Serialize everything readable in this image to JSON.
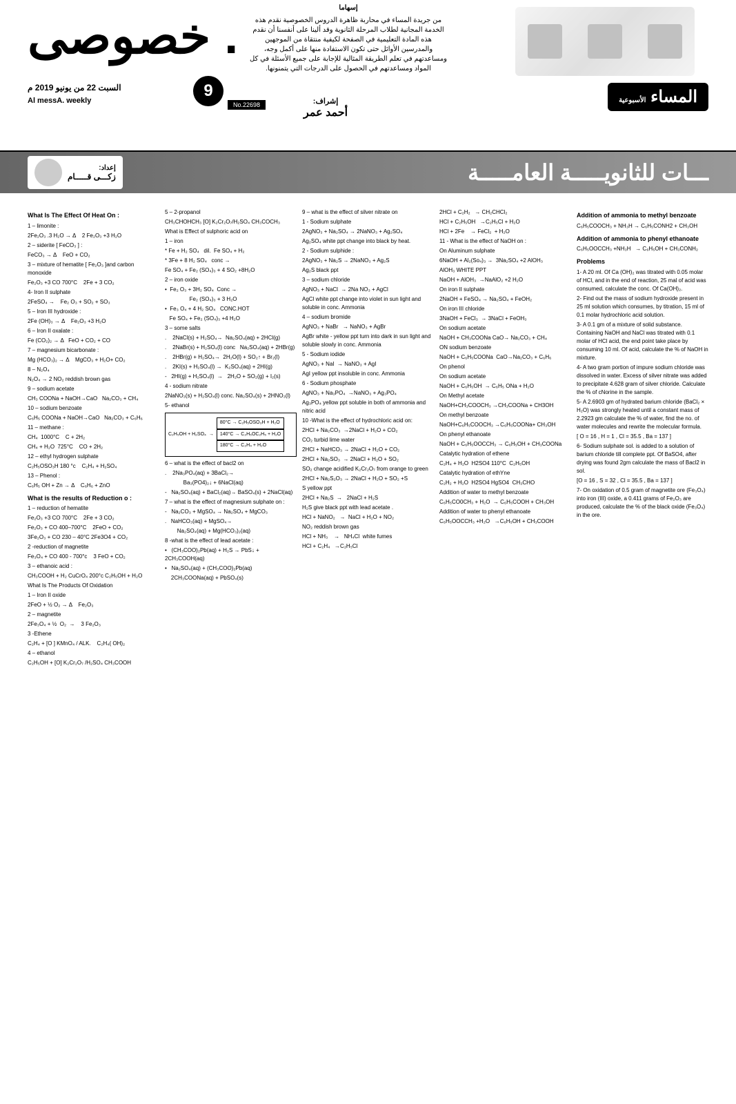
{
  "masthead": {
    "title": ". خصوصى",
    "date": "السبت 22 من يونيو 2019 م",
    "weekly": "Al messA. weekly",
    "page_number": "9",
    "issue": "No.22698",
    "intro_title": "إسهاما",
    "intro_body": "من جريدة المساء في محاربة ظاهرة الدروس الخصوصية نقدم هذه الخدمة المجانية لطلاب المرحلة الثانوية وقد ألينا على أنفسنا أن نقدم هذه المادة التعليمية في الصفحة لكيفية منتقاة من الموجهين والمدرسين الأوائل حتى تكون الاستفادة منها على أكمل وجه، ومساعدتهم في تعلم الطريقة المثالية للإجابة على جميع الأسئلة في كل المواد ومساعدتهم في الحصول على الدرجات التي يتمنونها.",
    "supervisor_label": "إشراف:",
    "supervisor_name": "أحمد عمر",
    "logo_main": "المساء",
    "logo_sub": "الأسبوعية"
  },
  "banner": {
    "title": "ـــات للثانويـــــة العامـــــة",
    "prep_label": "إعداد:",
    "author_name": "زكـــى قـــــام"
  },
  "col1": {
    "h1": "What Is The Effect Of Heat On :",
    "items": [
      "1 – limonite :",
      "2Fe₂O₃ .3 H₂O → Δ    2 Fe₂O₃ +3 H₂O",
      "2 – siderite [ FeCO₃ ] :",
      "FeCO₃ → Δ    FeO + CO₂",
      "3 – mixture of hematite [ Fe₂O₃ ]and carbon monoxide",
      "Fe₂O₃ +3 CO 700°C    2Fe + 3 CO₂",
      "4- Iron II sulphate",
      "2FeSO₄ →    Fe₂ O₃ + SO₂ + SO₃",
      "5 – Iron III hydroxide :",
      "2Fe (OH)₃ → Δ    Fe₂O₃ +3 H₂O",
      "6 – Iron II oxalate :",
      "Fe (CO₂)₂ → Δ   FeO + CO₂ + CO",
      "7 – magnesium bicarbonate :",
      "Mg (HCO₃)₂ → Δ    MgCO₃ + H₂O+ CO₂",
      "8 – N₂O₄",
      "N₂O₄ → 2 NO₂ reddish brown gas",
      "9 – sodium acetate",
      "CH₃ COONa + NaOH→CaO   Na₂CO₃ + CH₄",
      "10 – sodium benzoate",
      "C₆H₅ COONa + NaOH→CaO   Na₂CO₃ + C₆H₆",
      "11 – methane :",
      "CH₄  1000°C    C + 2H₂",
      "CH₄ + H₂O  725°C    CO + 2H₂",
      "",
      "12 – ethyl hydrogen sulphate",
      "C₂H₅OSO₃H 180 °c    C₂H₄ + H₂SO₄",
      "13 – Phenol :",
      "C₆H₅ OH + Zn → Δ    C₆H₆ + ZnO"
    ],
    "h2": "What is the results of Reduction o :",
    "items2": [
      "1 – reduction of hematite",
      "Fe₂O₃ +3 CO 700°C    2Fe + 3 CO₂",
      "Fe₂O₃ + CO 400–700°C    2FeO + CO₂",
      "3Fe₂O₃ + CO 230 – 40°C 2Fe3O4 + CO₂",
      "2 -reduction of magnetite",
      "Fe₃O₄ + CO 400 - 700°c    3 FeO + CO₂",
      "3 – ethanoic acid :",
      "CH₃COOH + H₂ CuCrO₄ 200°c C₂H₅OH + H₂O",
      "What Is The Products Of Oxidation",
      "1 – Iron II oxide",
      "2FeO + ½ O₂ → Δ    Fe₂O₃",
      "2 – magnetite",
      "2Fe₃O₄ + ½  O₂  →    3 Fe₂O₃",
      "3 -Ethene",
      "C₂H₄ + [O ] KMnO₄ / ALK.    C₂H₄( OH)₂",
      "4 – ethanol",
      "C₂H₅OH + [O] K₂Cr₂O₇ /H₂SO₄ CH₃COOH"
    ]
  },
  "col2": {
    "items": [
      "5 – 2-propanol",
      "CH₃CHOHCH₃ [O] K₂Cr₂O₇/H₂SO₄ CH₃COCH₃",
      "What is Effect of sulphoric acid on",
      "1 – iron",
      "* Fe + H₂ SO₄   dil.  Fe SO₄ + H₂",
      "* 3Fe + 8 H₂ SO₄   conc →",
      "Fe SO₄ + Fe₂ (SO₄)₃ + 4 SO₂ +8H₂O",
      "2 – iron oxide",
      "•  Fe₂ O₃ + 3H₂ SO₄  Conc →",
      "                Fe₂ (SO₄)₃ + 3 H₂O",
      "•  Fe₃ O₄ + 4 H₂ SO₄   CONC.HOT",
      "   Fe SO₄ + Fe₂ (SO₄)₃ +4 H₂O",
      "3 – some salts",
      ".    2NaCl(s) + H₂SO₄→  Na₂SO₄(aq) + 2HCl(g)",
      ".    2NaBr(s) + H₂SO₄(l) conc   Na₂SO₄(aq) + 2HBr(g)",
      ".    2HBr(g) + H₂SO₄→  2H₂O(l) + SO₂↑ + Br₂(l)",
      ".    2KI(s) + H₂SO₄(l) →  K₂SO₄(aq) + 2HI(g)",
      "-   2HI(g) + H₂SO₄(l)  →   2H₂O + SO₂(g) + I₂(s)",
      "",
      "4 - sodium nitrate",
      "2NaNO₃(s) + H₂SO₄(l) conc. Na₂SO₄(s) + 2HNO₃(l)",
      "",
      "5- ethanol"
    ],
    "diagram": {
      "left": "C₂H₅OH + H₂SO₄",
      "paths": [
        "80°C → C₂H₅OSO₃H + H₂O",
        "140°C → C₂H₅OC₂H₅ + H₂O",
        "180°C → C₂H₄ + H₂O"
      ]
    },
    "items2": [
      "6 – what is the effect of bacl2 on",
      ".    2Na₃PO₄(aq) + 3BaCl₂→",
      "            Ba₃(PO4)₂↓ + 6NaCl(aq)",
      "-   Na₂SO₄(aq) + BaCl₂(aq)→ BaSO₄(s) + 2NaCl(aq)",
      "7 – what is the effect of magnesium sulphate on :",
      "-   Na₂CO₃ + MgSO₄ → Na₂SO₄ + MgCO₃",
      ".   NaHCO₃(aq) + MgSO₄→",
      "        Na₂SO₄(aq) + Mg(HCO₃)₂(aq)",
      "8 -what is the effect of lead acetate :",
      "•   (CH₃COO)₂Pb(aq) + H₂S → PbS↓ + 2CH₃COOH(aq)",
      "•   Na₂SO₄(aq) + (CH₃COO)₂Pb(aq)",
      "    2CH₃COONa(aq) + PbSO₄(s)"
    ]
  },
  "col3": {
    "items": [
      "9 – what is the effect of silver nitrate on",
      "1 - Sodium sulphate",
      "2AgNO₃ + Na₂SO₄ → 2NaNO₃ + Ag₂SO₄",
      "Ag₂SO₄ white ppt change into black by heat.",
      "2 - Sodium sulphide :",
      "2AgNO₃ + Na₂S → 2NaNO₃ + Ag₂S",
      "Ag₂S black ppt",
      "3 – sodium chloride",
      "AgNO₃ + NaCl  → 2Na NO₃ + AgCl",
      "AgCl white ppt change into violet in sun light and soluble in conc. Ammonia",
      "4 – sodium bromide",
      "AgNO₃ + NaBr   → NaNO₃ + AgBr",
      "AgBr white - yellow ppt turn into dark in sun light and soluble slowly in conc. Ammonia",
      "5 - Sodium iodide",
      "AgNO₃ + NaI  → NaNO₃ + AgI",
      "AgI yellow ppt insoluble in conc. Ammonia",
      "",
      "6 - Sodium phosphate",
      "AgNO₃ + Na₃PO₄  →NaNO₃ + Ag₃PO₄",
      "Ag₃PO₄ yellow ppt soluble in both of ammonia and nitric acid",
      "10 -What is the effect of hydrochloric acid on:",
      "2HCl + Na₂CO₃  →2NaCl + H₂O + CO₂",
      "CO₂ turbid lime water",
      "2HCl + NaHCO₃ → 2NaCl + H₂O + CO₂",
      "2HCl + Na₂SO₃  → 2NaCl + H₂O + SO₂",
      "SO₂ change acidified K₂Cr₂O₇ from orange to green",
      "2HCl + Na₂S₂O₃ → 2NaCl + H₂O + SO₂ +S",
      "S yellow ppt",
      "2HCl + Na₂S  →   2NaCl + H₂S",
      "H₂S give black ppt with lead acetate .",
      "HCl + NaNO₂   →  NaCl + H₂O + NO₂",
      "NO₂ reddish brown gas",
      "HCl + NH₃    →   NH₄Cl  white fumes",
      "HCl + C₂H₄   →C₂H₅Cl"
    ]
  },
  "col4": {
    "items": [
      "2HCl + C₂H₂   → CH₂CHCl₂",
      "HCl + C₂H₅OH   →C₂H₅Cl + H₂O",
      "HCl + 2Fe    → FeCl₂  + H₂O",
      "11 - What is the effect of NaOH on :",
      "On Aluminum sulphate",
      "6NaOH + Al₂(So₄)₃ →  3Na₂SO₄ +2 AlOH₃",
      "AlOH₃ WHITE PPT",
      "NaOH + AlOH₃  →NaAlO₂ +2 H₂O",
      "On iron II sulphate",
      "2NaOH + FeSO₄ → Na₂SO₄ + FeOH₂",
      "On iron III chloride",
      "3NaOH + FeCl₃  → 3NaCl + FeOH₃",
      "On sodium acetate",
      "NaOH + CH₃COONa CaO→ Na₂CO₃ + CH₄",
      "ON sodium benzoate",
      "NaOH + C₆H₅COONa  CaO→Na₂CO₃ + C₆H₆",
      "On phenol",
      "On sodium acetate",
      "NaOH + C₆H₅OH  → C₆H₅ ONa + H₂O",
      "",
      "On Methyl acetate",
      "NaOH+CH₃COOCH₃ →CH₃COONa + CH3OH",
      "On methyl benzoate",
      "NaOH+C₆H₅COOCH₃ →C₆H₅COONa+ CH₃OH",
      "On phenyl ethanoate",
      "NaOH + C₆H₅OOCCH₃ → C₆H₅OH + CH₃COONa",
      "Catalytic hydration of ethene",
      "C₂H₄ + H₂O  H2SO4 110°C  C₂H₅OH",
      "",
      "Catalytic hydration of ethYne",
      "C₂H₂ + H₂O  H2SO4 HgSO4  CH₃CHO",
      "",
      "Addition of water to methyl benzoate",
      "C₆H₅CO0CH₃ + H₂O  → C₆H₅COOH + CH₃OH",
      "Addition of water to phenyl ethanoate",
      "C₆H₅OOCCH₃ +H₂O   →C₆H₅OH + CH₃COOH"
    ]
  },
  "col5": {
    "h1": "Addition of ammonia  to methyl benzoate",
    "items1": [
      "C₆H₅COOCH₃ + NH₃H → C₆H₅CONH2 + CH₃OH"
    ],
    "h2": "Addition of ammonia  to phenyl ethanoate",
    "items2": [
      "C₆H₅OOCCH₃ +NH₃H   → C₆H₅OH + CH₃CONH₂"
    ],
    "h3": "Problems",
    "problems": [
      "1- A 20 ml. Of Ca (OH)₂ was titrated with 0.05 molar of HCl, and in the end of reaction, 25 mal of acid was consumed, calculate the conc. Of Ca(OH)₂.",
      "2- Find out the mass of sodium hydroxide present in 25 ml solution which consumes, by titration, 15 ml of 0.1 molar hydrochloric acid solution.",
      "3- A 0.1 gm of a mixture of solid substance. Containing NaOH and NaCl was titrated with 0.1 molar of HCl acid, the end point take place by consuming 10 ml. Of acid, calculate the % of NaOH in mixture.",
      "",
      "4- A two gram portion of impure sodium chloride was dissolved in water. Excess of silver nitrate was added to precipitate 4.628 gram of silver chloride. Calculate the % of cNorine in the sample.",
      "5- A 2.6903 gm of hydrated barium chloride (BaCl₂ × H₂O) was strongly heated until a constant mass of 2.2923 gm calculate the % of water, find the no. of water molecules and rewrite the molecular formula.",
      "[ O = 16 , H = 1 , Cl = 35.5 , Ba = 137 ]",
      "6- Sodium sulphate sol. is added to a solution of barium chloride till complete ppt. Of BaSO4, after drying was found 2gm calculate the mass of Bacl2 in sol.",
      "[O = 16 , S = 32 , Cl = 35.5 , Ba = 137 ]",
      "7- On oxidation of 0.5 gram of magnetite ore (Fe₃O₄) into iron (III) oxide, a 0.411 grams of Fe₂O₃ are produced, calculate the % of the black oxide (Fe₃O₄) in the ore."
    ]
  }
}
